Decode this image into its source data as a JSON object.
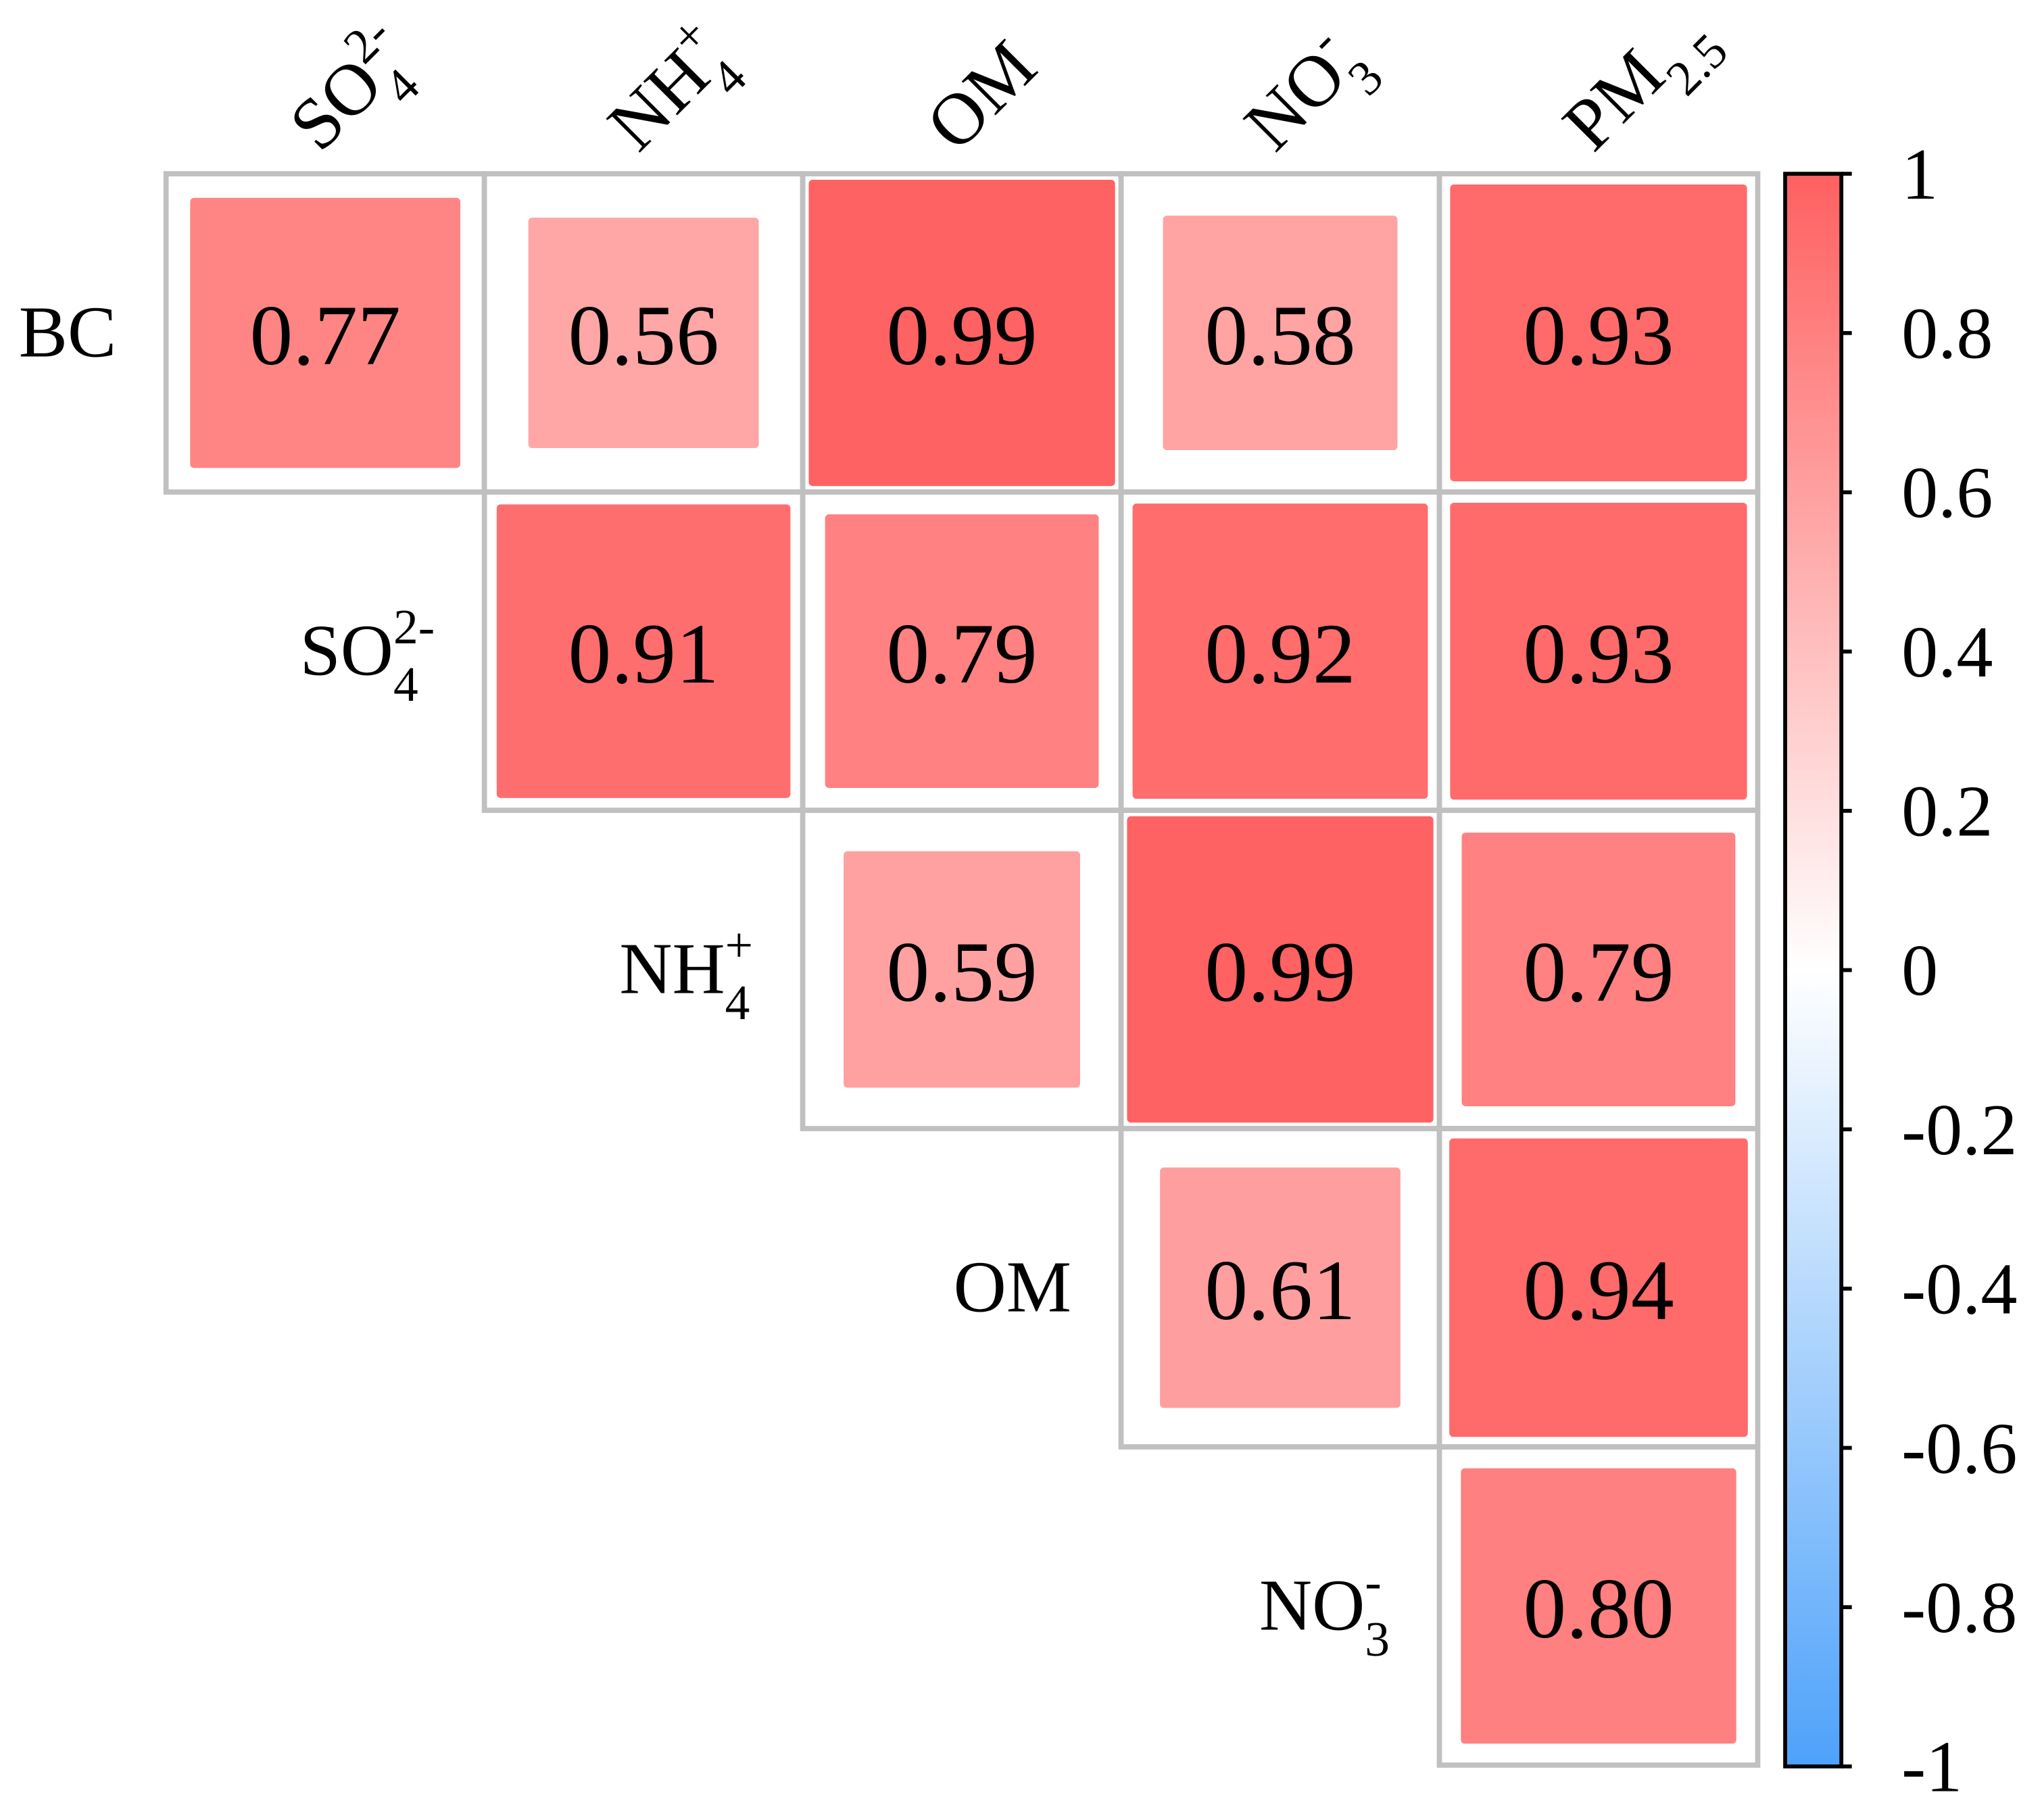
{
  "chart_data": {
    "type": "heatmap",
    "row_labels": [
      {
        "text": "BC"
      },
      {
        "text": "SO",
        "sub": "4",
        "sup": "2-"
      },
      {
        "text": "NH",
        "sub": "4",
        "sup": "+"
      },
      {
        "text": "OM"
      },
      {
        "text": "NO",
        "sub": "3",
        "sup": "-"
      }
    ],
    "col_labels": [
      {
        "text": "SO",
        "sub": "4",
        "sup": "2-"
      },
      {
        "text": "NH",
        "sub": "4",
        "sup": "+"
      },
      {
        "text": "OM"
      },
      {
        "text": "NO",
        "sub": "3",
        "sup": "-"
      },
      {
        "text": "PM",
        "sub": "2.5"
      }
    ],
    "values": [
      [
        0.77,
        0.56,
        0.99,
        0.58,
        0.93
      ],
      [
        null,
        0.91,
        0.79,
        0.92,
        0.93
      ],
      [
        null,
        null,
        0.59,
        0.99,
        0.79
      ],
      [
        null,
        null,
        null,
        0.61,
        0.94
      ],
      [
        null,
        null,
        null,
        null,
        0.8
      ]
    ],
    "value_labels": [
      [
        "0.77",
        "0.56",
        "0.99",
        "0.58",
        "0.93"
      ],
      [
        null,
        "0.91",
        "0.79",
        "0.92",
        "0.93"
      ],
      [
        null,
        null,
        "0.59",
        "0.99",
        "0.79"
      ],
      [
        null,
        null,
        null,
        "0.61",
        "0.94"
      ],
      [
        null,
        null,
        null,
        null,
        "0.80"
      ]
    ],
    "colormap": [
      "#4ea2fa",
      "#ffffff",
      "#ff6060"
    ],
    "clim": [
      -1,
      1
    ],
    "colorbar_ticks": [
      -1,
      -0.8,
      -0.6,
      -0.4,
      -0.2,
      0,
      0.2,
      0.4,
      0.6,
      0.8,
      1
    ]
  }
}
